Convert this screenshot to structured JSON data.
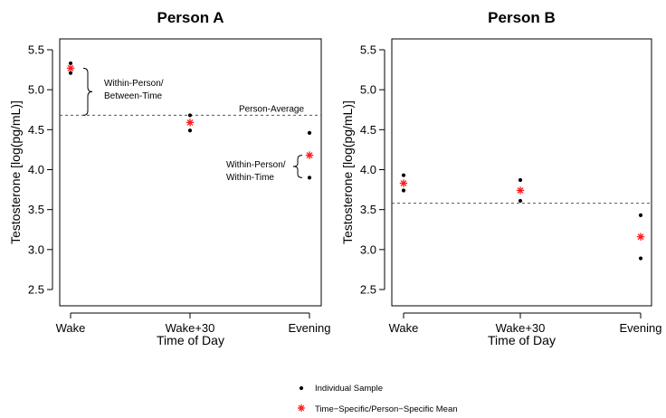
{
  "colors": {
    "sample": "#000000",
    "mean": "#ff1a1a",
    "reference": "#555555"
  },
  "chart_data": [
    {
      "type": "scatter",
      "title": "Person A",
      "xlabel": "Time of Day",
      "ylabel": "Testosterone [log(pg/mL)]",
      "categories": [
        "Wake",
        "Wake+30",
        "Evening"
      ],
      "ylim": [
        2.5,
        5.5
      ],
      "yticks": [
        "2.5",
        "3.0",
        "3.5",
        "4.0",
        "4.5",
        "5.0",
        "5.5"
      ],
      "series": [
        {
          "name": "Individual Sample",
          "values": [
            [
              5.33,
              5.21
            ],
            [
              4.68,
              4.49
            ],
            [
              4.46,
              3.9
            ]
          ]
        },
        {
          "name": "Time−Specific/Person−Specific Mean",
          "values": [
            5.27,
            4.59,
            4.18
          ]
        }
      ],
      "reference_line": {
        "y": 4.68,
        "style": "dashed",
        "label": "Person-Average"
      },
      "annotations": [
        {
          "text": [
            "Within-Person/",
            "Between-Time"
          ],
          "brace_from": 5.27,
          "brace_to": 4.68
        },
        {
          "text": [
            "Within-Person/",
            "Within-Time"
          ],
          "brace_from": 4.18,
          "brace_to": 3.9
        }
      ]
    },
    {
      "type": "scatter",
      "title": "Person B",
      "xlabel": "Time of Day",
      "ylabel": "Testosterone [log(pg/mL)]",
      "categories": [
        "Wake",
        "Wake+30",
        "Evening"
      ],
      "ylim": [
        2.5,
        5.5
      ],
      "yticks": [
        "2.5",
        "3.0",
        "3.5",
        "4.0",
        "4.5",
        "5.0",
        "5.5"
      ],
      "series": [
        {
          "name": "Individual Sample",
          "values": [
            [
              3.93,
              3.74
            ],
            [
              3.87,
              3.61
            ],
            [
              3.43,
              2.89
            ]
          ]
        },
        {
          "name": "Time−Specific/Person−Specific Mean",
          "values": [
            3.83,
            3.74,
            3.16
          ]
        }
      ],
      "reference_line": {
        "y": 3.58,
        "style": "dashed"
      }
    }
  ],
  "legend": {
    "placement": "bottom-center",
    "items": [
      {
        "label": "Individual Sample",
        "marker": "dot"
      },
      {
        "label": "Time−Specific/Person−Specific Mean",
        "marker": "asterisk"
      }
    ]
  }
}
